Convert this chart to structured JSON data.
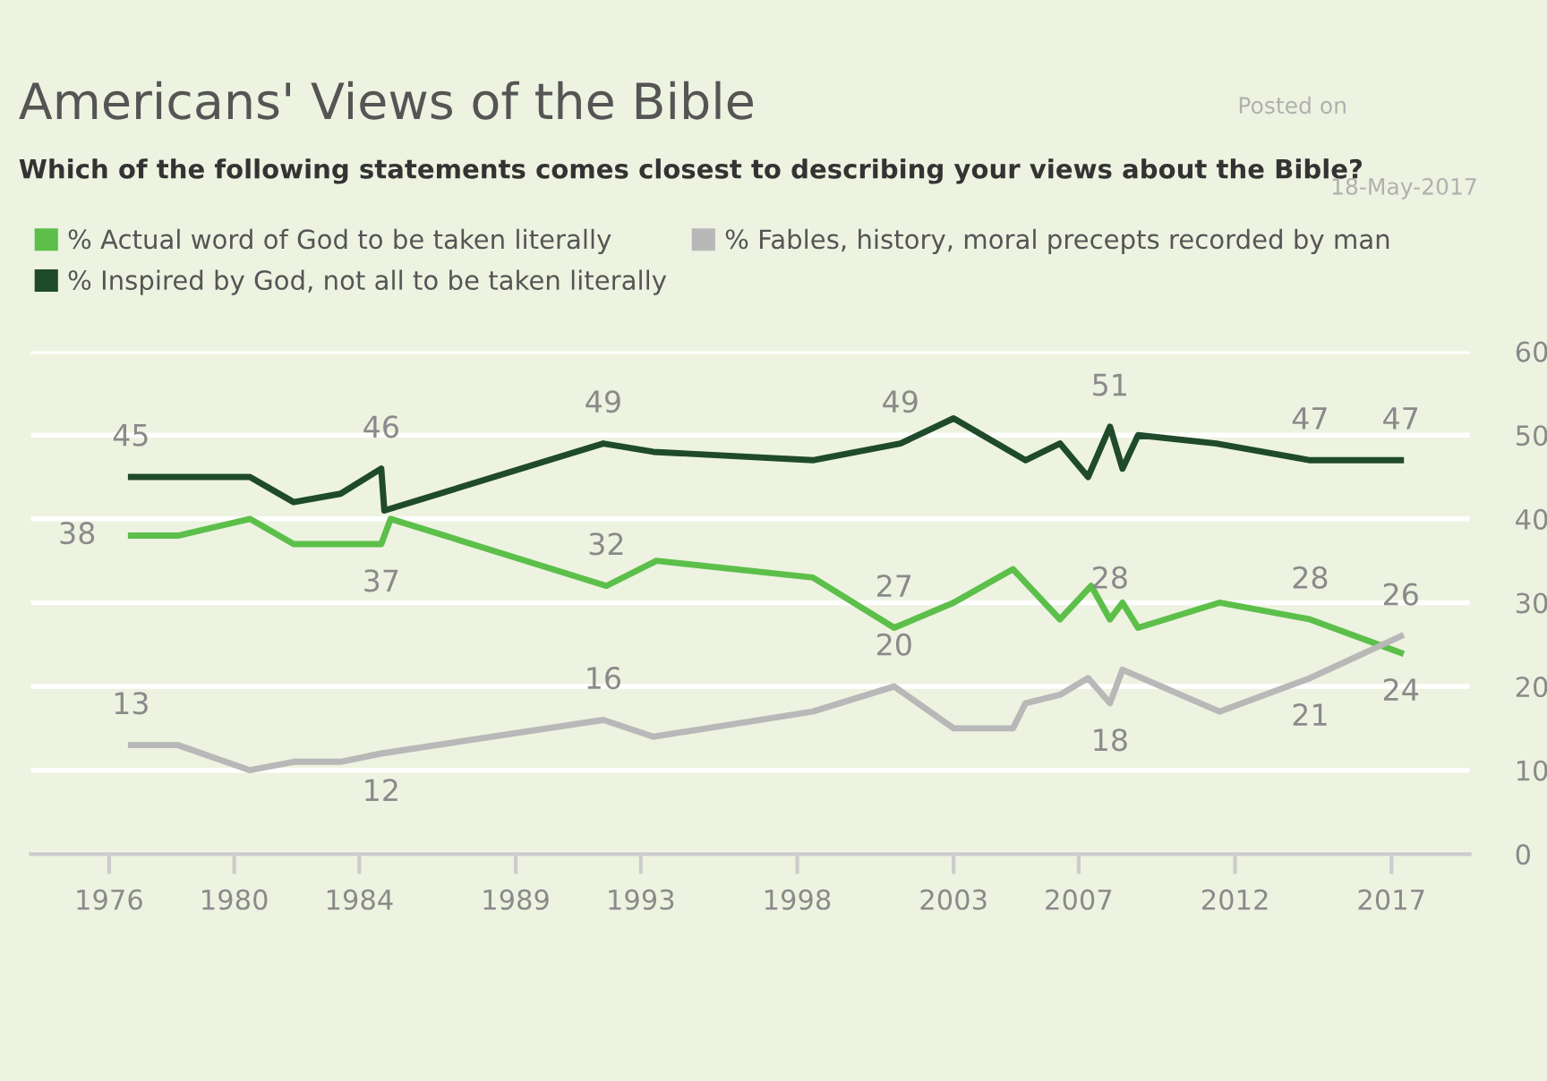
{
  "chart_data": {
    "type": "line",
    "title": "Americans' Views of the Bible",
    "subtitle": "Which of the following statements comes closest to describing your views about the Bible?",
    "annotations": [
      "Posted on",
      "18-May-2017"
    ],
    "x": [
      1976.7,
      1978.2,
      1980.5,
      1981.9,
      1983.4,
      1984.7,
      1985.0,
      1991.9,
      1993.5,
      1998.5,
      2001.1,
      2003.0,
      2004.9,
      2006.4,
      2007.4,
      2008.0,
      2008.4,
      2008.9,
      2011.5,
      2014.4,
      2017.3
    ],
    "series": [
      {
        "name": "% Actual word of God to be taken literally",
        "color": "#5cbf4a",
        "values": [
          38,
          38,
          40,
          37,
          37,
          37,
          40,
          32,
          35,
          33,
          27,
          30,
          34,
          28,
          32,
          28,
          30,
          27,
          30,
          28,
          24
        ],
        "value_labels": [
          "38",
          null,
          null,
          null,
          null,
          "37",
          null,
          "32",
          null,
          null,
          "27",
          null,
          null,
          null,
          null,
          "28",
          null,
          null,
          null,
          "28",
          "24"
        ]
      },
      {
        "name": "% Inspired by God, not all to be taken literally",
        "color": "#1f4a2c",
        "x": [
          1976.7,
          1978.2,
          1980.5,
          1981.9,
          1983.4,
          1984.7,
          1984.8,
          1991.8,
          1993.4,
          1998.5,
          2001.3,
          2003.0,
          2005.3,
          2006.4,
          2007.3,
          2008.0,
          2008.4,
          2008.9,
          2011.4,
          2014.4,
          2017.3
        ],
        "values": [
          45,
          45,
          45,
          42,
          43,
          46,
          41,
          49,
          48,
          47,
          49,
          52,
          47,
          49,
          45,
          51,
          46,
          50,
          49,
          47,
          47
        ],
        "value_labels": [
          "45",
          null,
          null,
          null,
          null,
          "46",
          null,
          "49",
          null,
          null,
          "49",
          null,
          null,
          null,
          null,
          "51",
          null,
          null,
          null,
          "47",
          "47"
        ]
      },
      {
        "name": "% Fables, history, moral precepts recorded by man",
        "color": "#b8b8b8",
        "x": [
          1976.7,
          1978.2,
          1980.5,
          1981.9,
          1983.4,
          1984.7,
          1991.8,
          1993.4,
          1998.5,
          2001.1,
          2003.0,
          2004.9,
          2005.3,
          2006.4,
          2007.3,
          2008.0,
          2008.4,
          2011.5,
          2014.4,
          2017.3
        ],
        "values": [
          13,
          13,
          10,
          11,
          11,
          12,
          16,
          14,
          17,
          20,
          15,
          15,
          18,
          19,
          21,
          18,
          22,
          17,
          21,
          26
        ],
        "value_labels": [
          "13",
          null,
          null,
          null,
          null,
          "12",
          "16",
          null,
          null,
          "20",
          null,
          null,
          null,
          null,
          null,
          "18",
          null,
          null,
          "21",
          "26"
        ]
      }
    ],
    "xlim": [
      1973.5,
      2019.5
    ],
    "xticks": [
      1976,
      1980,
      1984,
      1989,
      1993,
      1998,
      2003,
      2007,
      2012,
      2017
    ],
    "ylim": [
      0,
      60
    ],
    "yticks": [
      0,
      10,
      20,
      30,
      40,
      50,
      60
    ],
    "grid": "y",
    "legend": "top",
    "marker": "none",
    "line_style": "solid"
  }
}
